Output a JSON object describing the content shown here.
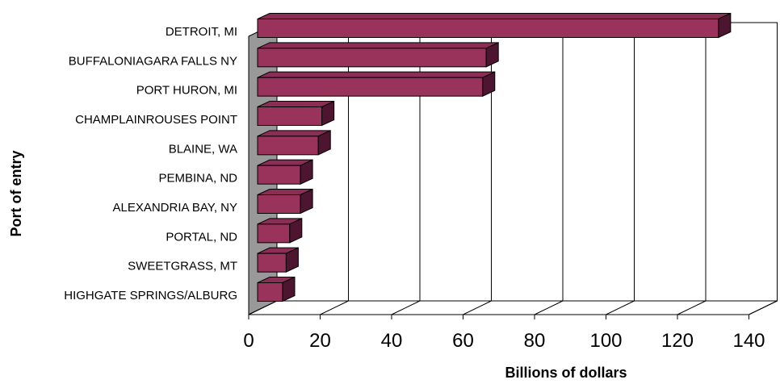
{
  "chart_data": {
    "type": "bar",
    "orientation": "horizontal",
    "style": "3d",
    "categories": [
      "DETROIT, MI",
      "BUFFALONIAGARA FALLS NY",
      "PORT HURON, MI",
      "CHAMPLAINROUSES POINT",
      "BLAINE, WA",
      "PEMBINA, ND",
      "ALEXANDRIA BAY, NY",
      "PORTAL, ND",
      "SWEETGRASS, MT",
      "HIGHGATE SPRINGS/ALBURG"
    ],
    "values": [
      129,
      64,
      63,
      18,
      17,
      12,
      12,
      9,
      8,
      7
    ],
    "xlabel": "Billions of dollars",
    "ylabel": "Port of entry",
    "xlim": [
      0,
      140
    ],
    "xticks": [
      "0",
      "20",
      "40",
      "60",
      "80",
      "100",
      "120",
      "140"
    ],
    "grid": true,
    "legend": "none",
    "colors": {
      "bar_front": "#99335c",
      "bar_top": "#8a2e56",
      "bar_side": "#4d1530",
      "wall": "#999999",
      "grid": "#000000"
    }
  }
}
